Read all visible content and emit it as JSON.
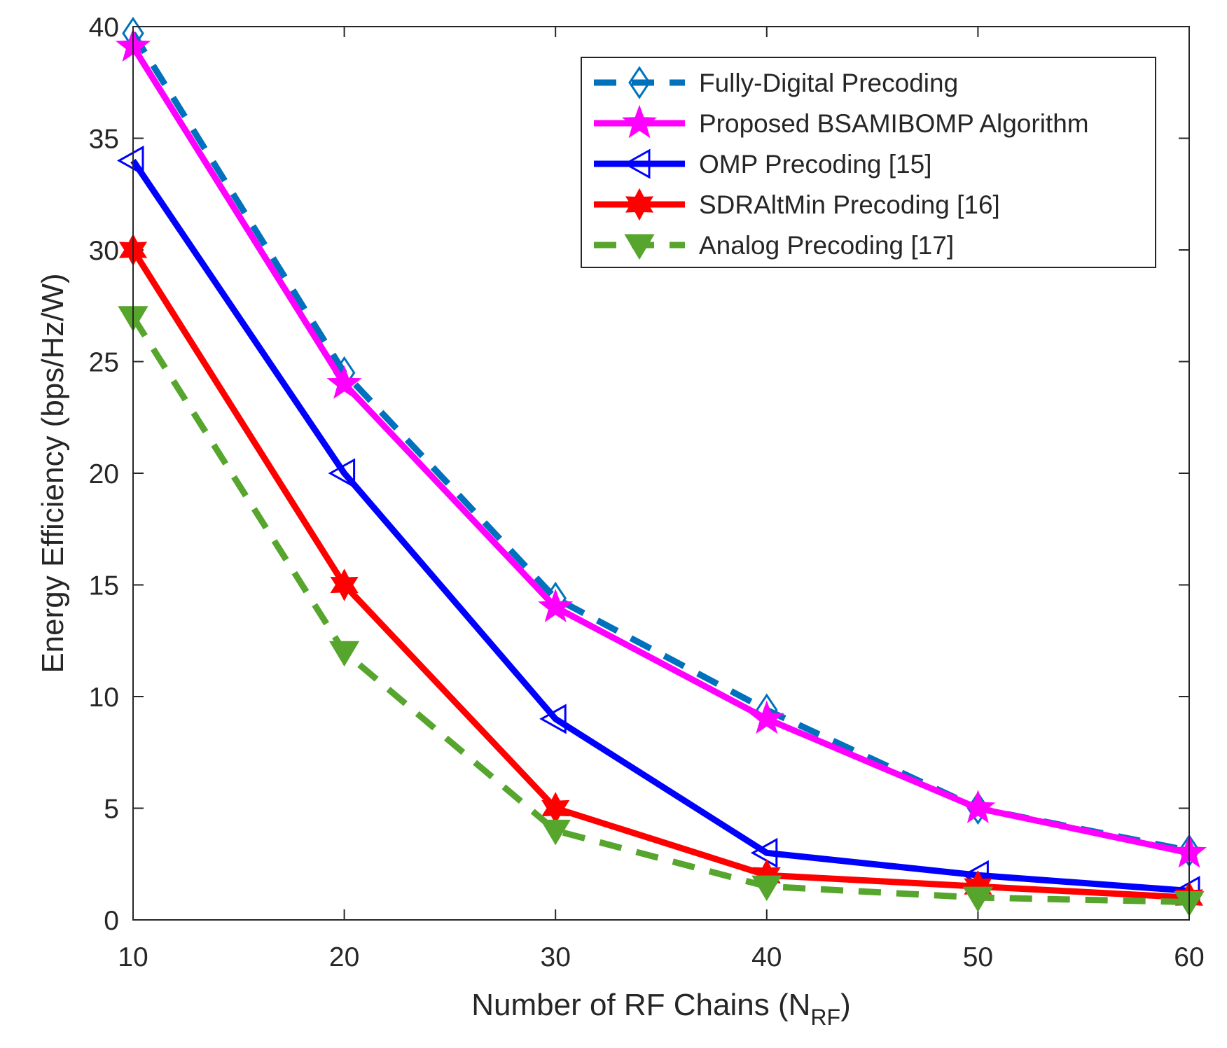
{
  "chart_data": {
    "type": "line",
    "x": [
      10,
      20,
      30,
      40,
      50,
      60
    ],
    "xlabel_main": "Number of RF Chains (N",
    "xlabel_sub": "RF",
    "xlabel_close": ")",
    "ylabel": "Energy Efficiency (bps/Hz/W)",
    "xlim": [
      10,
      60
    ],
    "ylim": [
      0,
      40
    ],
    "xticks": [
      10,
      20,
      30,
      40,
      50,
      60
    ],
    "yticks": [
      0,
      5,
      10,
      15,
      20,
      25,
      30,
      35,
      40
    ],
    "grid": false,
    "legend_position": "top-right",
    "series": [
      {
        "name": "Fully-Digital Precoding",
        "values": [
          39.7,
          24.5,
          14.4,
          9.4,
          5.0,
          3.1
        ],
        "color": "#0072BD",
        "line": "dashed",
        "marker": "diamond"
      },
      {
        "name": "Proposed BSAMIBOMP Algorithm",
        "values": [
          39.1,
          24.0,
          14.0,
          9.0,
          5.0,
          3.0
        ],
        "color": "#FF00FF",
        "line": "solid",
        "marker": "pentagram"
      },
      {
        "name": "OMP Precoding [15]",
        "values": [
          34.0,
          20.0,
          9.0,
          3.0,
          2.0,
          1.3
        ],
        "color": "#0000FF",
        "line": "solid",
        "marker": "triangle-left"
      },
      {
        "name": "SDRAltMin Precoding [16]",
        "values": [
          30.0,
          15.0,
          5.0,
          2.0,
          1.5,
          1.0
        ],
        "color": "#FF0000",
        "line": "solid",
        "marker": "hexagram"
      },
      {
        "name": "Analog Precoding [17]",
        "values": [
          27.0,
          12.0,
          4.0,
          1.5,
          1.0,
          0.8
        ],
        "color": "#56A52C",
        "line": "dashed",
        "marker": "triangle-down"
      }
    ]
  }
}
